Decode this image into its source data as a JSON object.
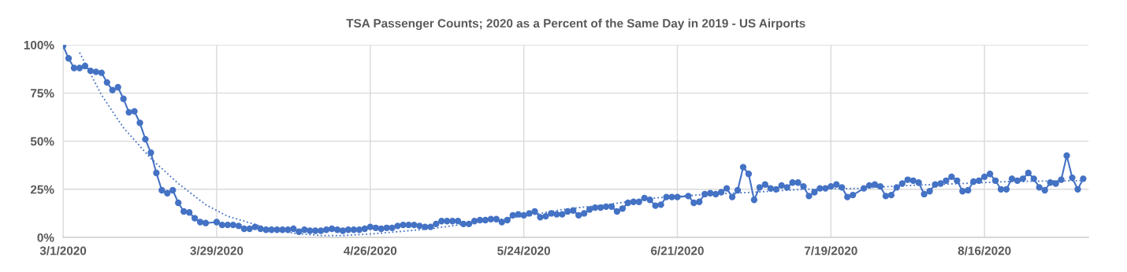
{
  "chart_data": {
    "type": "line",
    "title": "TSA Passenger Counts; 2020 as a Percent of the Same Day in 2019 - US Airports",
    "xlim": [
      "2020-03-01",
      "2020-09-04"
    ],
    "xticks": [
      {
        "value": "2020-03-01",
        "label": "3/1/2020"
      },
      {
        "value": "2020-03-29",
        "label": "3/29/2020"
      },
      {
        "value": "2020-04-26",
        "label": "4/26/2020"
      },
      {
        "value": "2020-05-24",
        "label": "5/24/2020"
      },
      {
        "value": "2020-06-21",
        "label": "6/21/2020"
      },
      {
        "value": "2020-07-19",
        "label": "7/19/2020"
      },
      {
        "value": "2020-08-16",
        "label": "8/16/2020"
      }
    ],
    "ylim": [
      0,
      100
    ],
    "yticks": [
      {
        "value": 0,
        "label": "0%"
      },
      {
        "value": 25,
        "label": "25%"
      },
      {
        "value": 50,
        "label": "50%"
      },
      {
        "value": 75,
        "label": "75%"
      },
      {
        "value": 100,
        "label": "100%"
      }
    ],
    "grid": true,
    "series": [
      {
        "color": "#4472c4",
        "marker": "circle",
        "line_style": "solid",
        "x": [
          "2020-03-01",
          "2020-03-02",
          "2020-03-03",
          "2020-03-04",
          "2020-03-05",
          "2020-03-06",
          "2020-03-07",
          "2020-03-08",
          "2020-03-09",
          "2020-03-10",
          "2020-03-11",
          "2020-03-12",
          "2020-03-13",
          "2020-03-14",
          "2020-03-15",
          "2020-03-16",
          "2020-03-17",
          "2020-03-18",
          "2020-03-19",
          "2020-03-20",
          "2020-03-21",
          "2020-03-22",
          "2020-03-23",
          "2020-03-24",
          "2020-03-25",
          "2020-03-26",
          "2020-03-27",
          "2020-03-29",
          "2020-03-30",
          "2020-03-31",
          "2020-04-01",
          "2020-04-02",
          "2020-04-03",
          "2020-04-04",
          "2020-04-05",
          "2020-04-06",
          "2020-04-07",
          "2020-04-08",
          "2020-04-09",
          "2020-04-10",
          "2020-04-11",
          "2020-04-12",
          "2020-04-13",
          "2020-04-14",
          "2020-04-15",
          "2020-04-16",
          "2020-04-17",
          "2020-04-18",
          "2020-04-19",
          "2020-04-20",
          "2020-04-21",
          "2020-04-22",
          "2020-04-23",
          "2020-04-24",
          "2020-04-25",
          "2020-04-26",
          "2020-04-27",
          "2020-04-28",
          "2020-04-29",
          "2020-04-30",
          "2020-05-01",
          "2020-05-02",
          "2020-05-03",
          "2020-05-04",
          "2020-05-05",
          "2020-05-06",
          "2020-05-07",
          "2020-05-08",
          "2020-05-09",
          "2020-05-10",
          "2020-05-11",
          "2020-05-12",
          "2020-05-13",
          "2020-05-14",
          "2020-05-15",
          "2020-05-16",
          "2020-05-17",
          "2020-05-18",
          "2020-05-19",
          "2020-05-20",
          "2020-05-21",
          "2020-05-22",
          "2020-05-23",
          "2020-05-24",
          "2020-05-25",
          "2020-05-26",
          "2020-05-27",
          "2020-05-28",
          "2020-05-29",
          "2020-05-30",
          "2020-05-31",
          "2020-06-01",
          "2020-06-02",
          "2020-06-03",
          "2020-06-04",
          "2020-06-05",
          "2020-06-06",
          "2020-06-07",
          "2020-06-08",
          "2020-06-09",
          "2020-06-10",
          "2020-06-11",
          "2020-06-12",
          "2020-06-13",
          "2020-06-14",
          "2020-06-15",
          "2020-06-16",
          "2020-06-17",
          "2020-06-18",
          "2020-06-19",
          "2020-06-20",
          "2020-06-21",
          "2020-06-23",
          "2020-06-24",
          "2020-06-25",
          "2020-06-26",
          "2020-06-27",
          "2020-06-28",
          "2020-06-29",
          "2020-06-30",
          "2020-07-01",
          "2020-07-02",
          "2020-07-03",
          "2020-07-04",
          "2020-07-05",
          "2020-07-06",
          "2020-07-07",
          "2020-07-08",
          "2020-07-09",
          "2020-07-10",
          "2020-07-11",
          "2020-07-12",
          "2020-07-13",
          "2020-07-14",
          "2020-07-15",
          "2020-07-16",
          "2020-07-17",
          "2020-07-18",
          "2020-07-19",
          "2020-07-20",
          "2020-07-21",
          "2020-07-22",
          "2020-07-23",
          "2020-07-25",
          "2020-07-26",
          "2020-07-27",
          "2020-07-28",
          "2020-07-29",
          "2020-07-30",
          "2020-07-31",
          "2020-08-01",
          "2020-08-02",
          "2020-08-03",
          "2020-08-04",
          "2020-08-05",
          "2020-08-06",
          "2020-08-07",
          "2020-08-08",
          "2020-08-09",
          "2020-08-10",
          "2020-08-11",
          "2020-08-12",
          "2020-08-13",
          "2020-08-14",
          "2020-08-15",
          "2020-08-16",
          "2020-08-17",
          "2020-08-18",
          "2020-08-19",
          "2020-08-20",
          "2020-08-21",
          "2020-08-22",
          "2020-08-23",
          "2020-08-24",
          "2020-08-25",
          "2020-08-26",
          "2020-08-27",
          "2020-08-28",
          "2020-08-29",
          "2020-08-30",
          "2020-08-31",
          "2020-09-01",
          "2020-09-02",
          "2020-09-03"
        ],
        "values": [
          99.5,
          93,
          88,
          88,
          89,
          86.5,
          86,
          85.5,
          80.5,
          76.5,
          78,
          72,
          65,
          65.5,
          59.5,
          51,
          44,
          33.5,
          24.5,
          23,
          24.5,
          18,
          13.5,
          13,
          10,
          8,
          7.5,
          8,
          6.5,
          6.5,
          6.5,
          6,
          4.5,
          4.5,
          5.5,
          4.5,
          4,
          4,
          4,
          4,
          4,
          4.5,
          3,
          4,
          3.5,
          3.5,
          3.5,
          4,
          4.5,
          4,
          3.5,
          4,
          4,
          4,
          4.5,
          5.5,
          5,
          4.5,
          5,
          5,
          6,
          6.5,
          6.5,
          6.5,
          6,
          5.5,
          5.5,
          7,
          8.5,
          8.5,
          8.5,
          8.5,
          7,
          7,
          8.5,
          9,
          9,
          9.5,
          9.5,
          8,
          9,
          11.5,
          12,
          11.5,
          12.5,
          13.5,
          10.5,
          11,
          12.5,
          12,
          12,
          13.5,
          14,
          11.5,
          12.5,
          14.5,
          15.5,
          15.5,
          16,
          16,
          13.5,
          15,
          18,
          18.5,
          18.5,
          20.5,
          19.5,
          16.5,
          17,
          21,
          21,
          21,
          21.5,
          18,
          18.5,
          22.5,
          23,
          22.5,
          23.5,
          25.5,
          21,
          24.5,
          36.5,
          33,
          19.5,
          26,
          27.5,
          25.5,
          25,
          27,
          26,
          28.5,
          28.5,
          26.5,
          21.5,
          23.5,
          25.5,
          25.5,
          26.5,
          27.5,
          26,
          21,
          22,
          25.5,
          27,
          27.5,
          26.5,
          21.5,
          22,
          26,
          28,
          30,
          29.5,
          28.5,
          22.5,
          24,
          27.5,
          28,
          29.5,
          31.5,
          29.5,
          24,
          24.5,
          29,
          29.5,
          31.5,
          33,
          29.5,
          25,
          25,
          30.5,
          29.5,
          30.5,
          33.5,
          30.5,
          26,
          24.5,
          28.5,
          28,
          30,
          42.5,
          31,
          25,
          30.5
        ]
      },
      {
        "color": "#4472c4",
        "marker": "none",
        "line_style": "dotted",
        "x": [
          "2020-03-04",
          "2020-03-05",
          "2020-03-08",
          "2020-03-12",
          "2020-03-17",
          "2020-03-22",
          "2020-03-27",
          "2020-03-31",
          "2020-04-03",
          "2020-04-07",
          "2020-04-12",
          "2020-04-17",
          "2020-04-21",
          "2020-04-26",
          "2020-05-01",
          "2020-05-07",
          "2020-05-17",
          "2020-05-24",
          "2020-05-31",
          "2020-06-08",
          "2020-06-17",
          "2020-06-27",
          "2020-07-05",
          "2020-07-14",
          "2020-07-24",
          "2020-08-02",
          "2020-08-12",
          "2020-08-20",
          "2020-09-03"
        ],
        "values": [
          96,
          90.5,
          74,
          57,
          41,
          28,
          17,
          11,
          8.5,
          5,
          2.2,
          1,
          1,
          1.8,
          3,
          4.5,
          8.5,
          11,
          14.5,
          17,
          20.5,
          22.5,
          23.5,
          25,
          25.5,
          27,
          28,
          29,
          29.5
        ]
      }
    ]
  }
}
